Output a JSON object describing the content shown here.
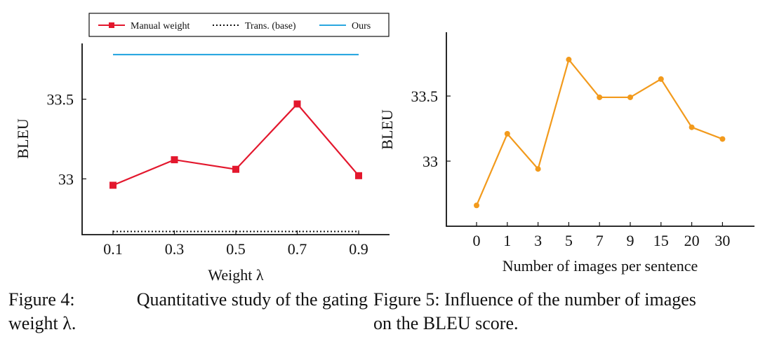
{
  "chart_data": [
    {
      "type": "line",
      "xlabel": "Weight λ",
      "ylabel": "BLEU",
      "categories": [
        "0.1",
        "0.3",
        "0.5",
        "0.7",
        "0.9"
      ],
      "ylim": [
        32.65,
        33.85
      ],
      "yticks": [
        {
          "value": 33,
          "label": "33"
        },
        {
          "value": 33.5,
          "label": "33.5"
        }
      ],
      "series": [
        {
          "name": "Manual weight",
          "color": "#e3172d",
          "style": "solid-square",
          "values": [
            32.96,
            33.12,
            33.06,
            33.47,
            33.02
          ]
        },
        {
          "name": "Trans. (base)",
          "color": "#111111",
          "style": "dotted",
          "values": [
            32.67,
            32.67,
            32.67,
            32.67,
            32.67
          ]
        },
        {
          "name": "Ours",
          "color": "#2aa7e0",
          "style": "solid",
          "values": [
            33.78,
            33.78,
            33.78,
            33.78,
            33.78
          ]
        }
      ]
    },
    {
      "type": "line",
      "xlabel": "Number of images per sentence",
      "ylabel": "BLEU",
      "categories": [
        "0",
        "1",
        "3",
        "5",
        "7",
        "9",
        "15",
        "20",
        "30"
      ],
      "ylim": [
        32.5,
        33.99
      ],
      "yticks": [
        {
          "value": 33,
          "label": "33"
        },
        {
          "value": 33.5,
          "label": "33.5"
        }
      ],
      "series": [
        {
          "name": "BLEU",
          "color": "#f29a1c",
          "style": "solid-dot",
          "values": [
            32.66,
            33.21,
            32.94,
            33.78,
            33.49,
            33.49,
            33.63,
            33.26,
            33.17
          ]
        }
      ]
    }
  ],
  "captions": {
    "fig4_label": "Figure 4:",
    "fig4_line1_text": "Quantitative study of the gating",
    "fig4_line2": "weight λ.",
    "fig5_line1": "Figure 5:  Influence of the number of images",
    "fig5_line2": "on the BLEU score."
  }
}
